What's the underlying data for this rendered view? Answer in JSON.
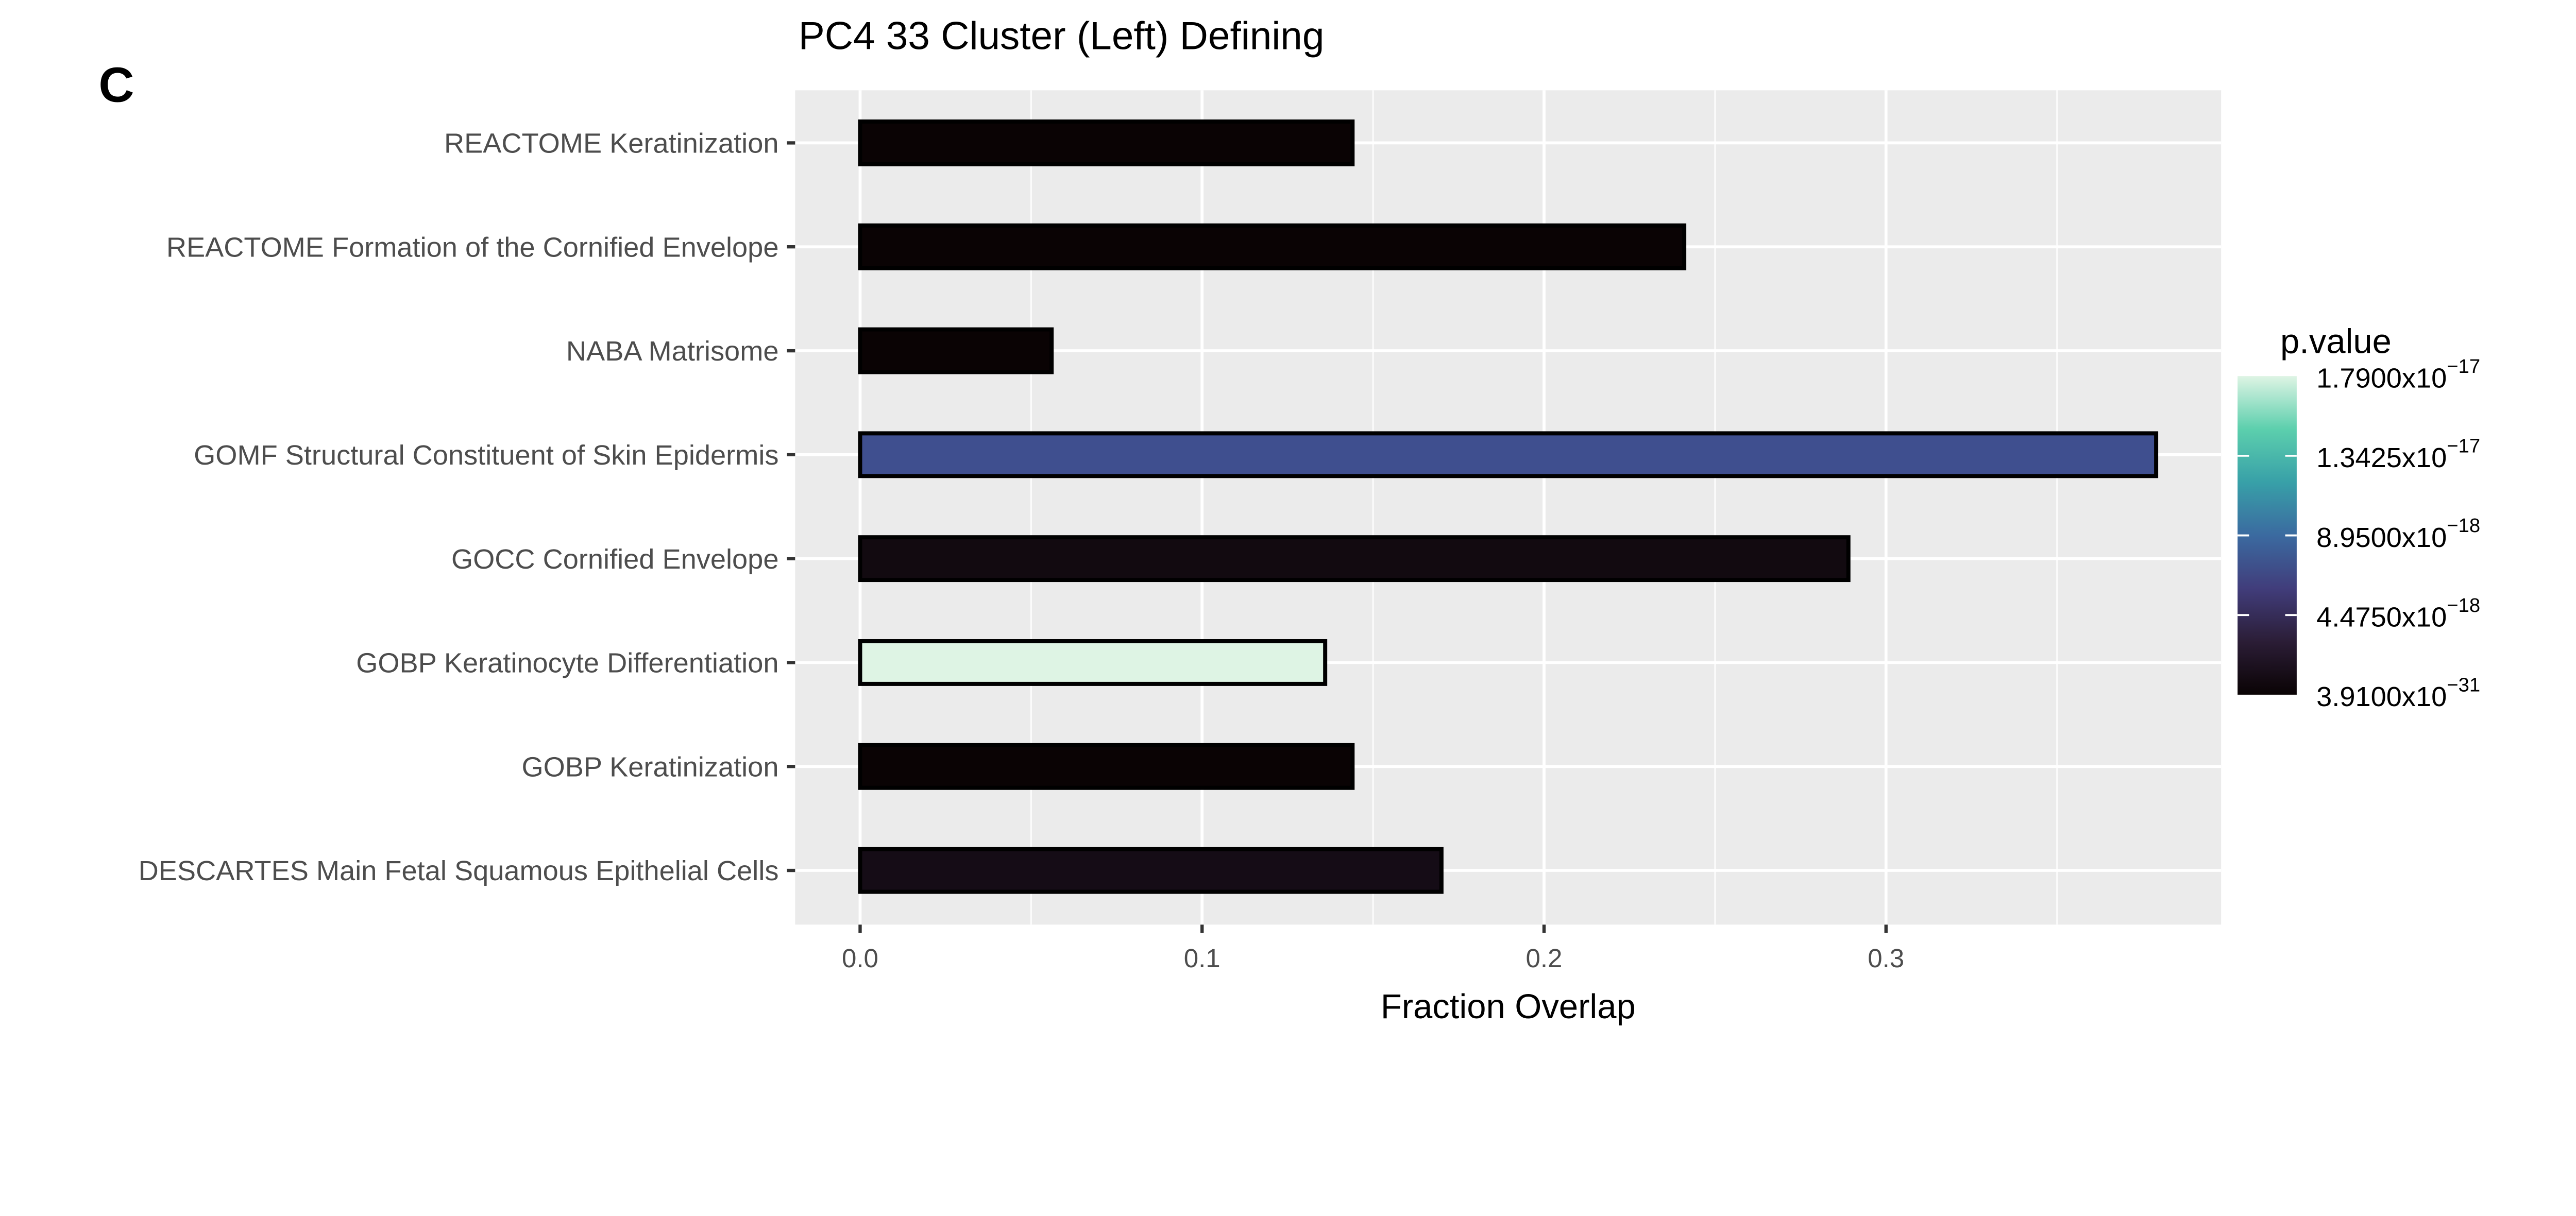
{
  "panel_label": "C",
  "chart_data": {
    "type": "bar",
    "orientation": "horizontal",
    "title": "PC4 33 Cluster (Left) Defining",
    "xlabel": "Fraction Overlap",
    "ylabel": "",
    "xlim": [
      -0.019,
      0.398
    ],
    "xticks": [
      "0.0",
      "0.1",
      "0.2",
      "0.3"
    ],
    "grid": true,
    "categories": [
      "REACTOME Keratinization",
      "REACTOME Formation of the Cornified Envelope",
      "NABA Matrisome",
      "GOMF Structural Constituent of Skin Epidermis",
      "GOCC Cornified Envelope",
      "GOBP Keratinocyte Differentiation",
      "GOBP Keratinization",
      "DESCARTES Main Fetal Squamous Epithelial Cells"
    ],
    "values": [
      0.144,
      0.241,
      0.056,
      0.379,
      0.289,
      0.136,
      0.144,
      0.17
    ],
    "fill_colors": [
      "#0a0304",
      "#0a0304",
      "#0a0304",
      "#3f4f8f",
      "#120a10",
      "#def4e4",
      "#0a0304",
      "#150c16"
    ],
    "legend": {
      "title": "p.value",
      "placement": "right",
      "labels": [
        {
          "mantissa": "1.7900x10",
          "exp": "−17"
        },
        {
          "mantissa": "1.3425x10",
          "exp": "−17"
        },
        {
          "mantissa": "8.9500x10",
          "exp": "−18"
        },
        {
          "mantissa": "4.4750x10",
          "exp": "−18"
        },
        {
          "mantissa": "3.9100x10",
          "exp": "−31"
        }
      ],
      "colors": [
        "#def4e4",
        "#5ccfad",
        "#38a0a8",
        "#3b6aa0",
        "#413d7b",
        "#2b1d36",
        "#0a0304"
      ]
    }
  }
}
